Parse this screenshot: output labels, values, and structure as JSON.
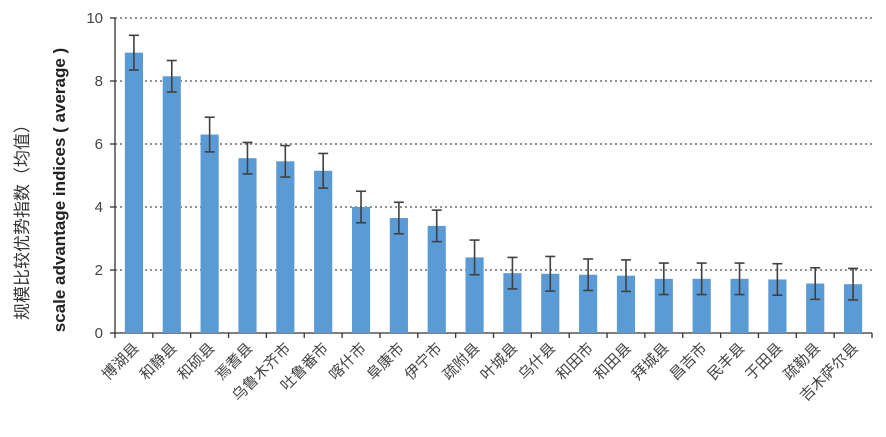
{
  "chart_data": {
    "type": "bar",
    "ylabel_cn": "规模比较优势指数（均值）",
    "ylabel_en": "scale advantage indices ( average )",
    "ylim": [
      0,
      10
    ],
    "yticks": [
      0,
      2,
      4,
      6,
      8,
      10
    ],
    "grid": "horizontal dotted",
    "bar_color": "#5B9BD5",
    "error_color": "#404040",
    "categories": [
      "博湖县",
      "和静县",
      "和硕县",
      "焉耆县",
      "乌鲁木齐市",
      "吐鲁番市",
      "喀什市",
      "阜康市",
      "伊宁市",
      "疏附县",
      "叶城县",
      "乌什县",
      "和田市",
      "和田县",
      "拜城县",
      "昌吉市",
      "民丰县",
      "于田县",
      "疏勒县",
      "吉木萨尔县"
    ],
    "values": [
      8.9,
      8.15,
      6.3,
      5.55,
      5.45,
      5.15,
      4.0,
      3.65,
      3.4,
      2.4,
      1.9,
      1.88,
      1.85,
      1.82,
      1.72,
      1.72,
      1.72,
      1.7,
      1.57,
      1.55
    ],
    "errors": [
      0.55,
      0.5,
      0.55,
      0.5,
      0.5,
      0.55,
      0.5,
      0.5,
      0.5,
      0.55,
      0.5,
      0.55,
      0.5,
      0.5,
      0.5,
      0.5,
      0.5,
      0.5,
      0.5,
      0.5
    ]
  }
}
